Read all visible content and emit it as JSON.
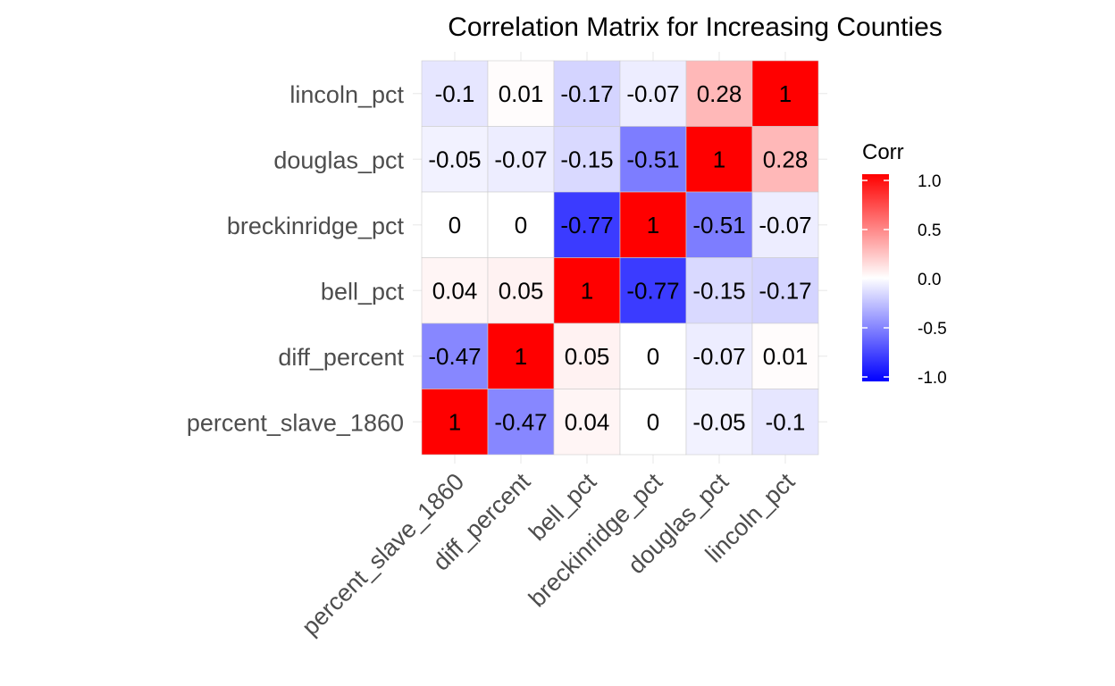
{
  "chart_data": {
    "type": "heatmap",
    "title": "Correlation Matrix for Increasing Counties",
    "x_labels": [
      "percent_slave_1860",
      "diff_percent",
      "bell_pct",
      "breckinridge_pct",
      "douglas_pct",
      "lincoln_pct"
    ],
    "y_labels_top_to_bottom": [
      "lincoln_pct",
      "douglas_pct",
      "breckinridge_pct",
      "bell_pct",
      "diff_percent",
      "percent_slave_1860"
    ],
    "values_top_to_bottom": [
      [
        -0.1,
        0.01,
        -0.17,
        -0.07,
        0.28,
        1
      ],
      [
        -0.05,
        -0.07,
        -0.15,
        -0.51,
        1,
        0.28
      ],
      [
        0,
        0,
        -0.77,
        1,
        -0.51,
        -0.07
      ],
      [
        0.04,
        0.05,
        1,
        -0.77,
        -0.15,
        -0.17
      ],
      [
        -0.47,
        1,
        0.05,
        0,
        -0.07,
        0.01
      ],
      [
        1,
        -0.47,
        0.04,
        0,
        -0.05,
        -0.1
      ]
    ],
    "color_scale": {
      "low": "#0000ff",
      "mid": "#ffffff",
      "high": "#ff0000",
      "limits": [
        -1,
        1
      ]
    },
    "legend": {
      "title": "Corr",
      "position": "right",
      "breaks": [
        1.0,
        0.5,
        0.0,
        -0.5,
        -1.0
      ],
      "labels": [
        "1.0",
        "0.5",
        "0.0",
        "-0.5",
        "-1.0"
      ]
    },
    "cell_border_color": "#cccccc",
    "grid": true
  }
}
